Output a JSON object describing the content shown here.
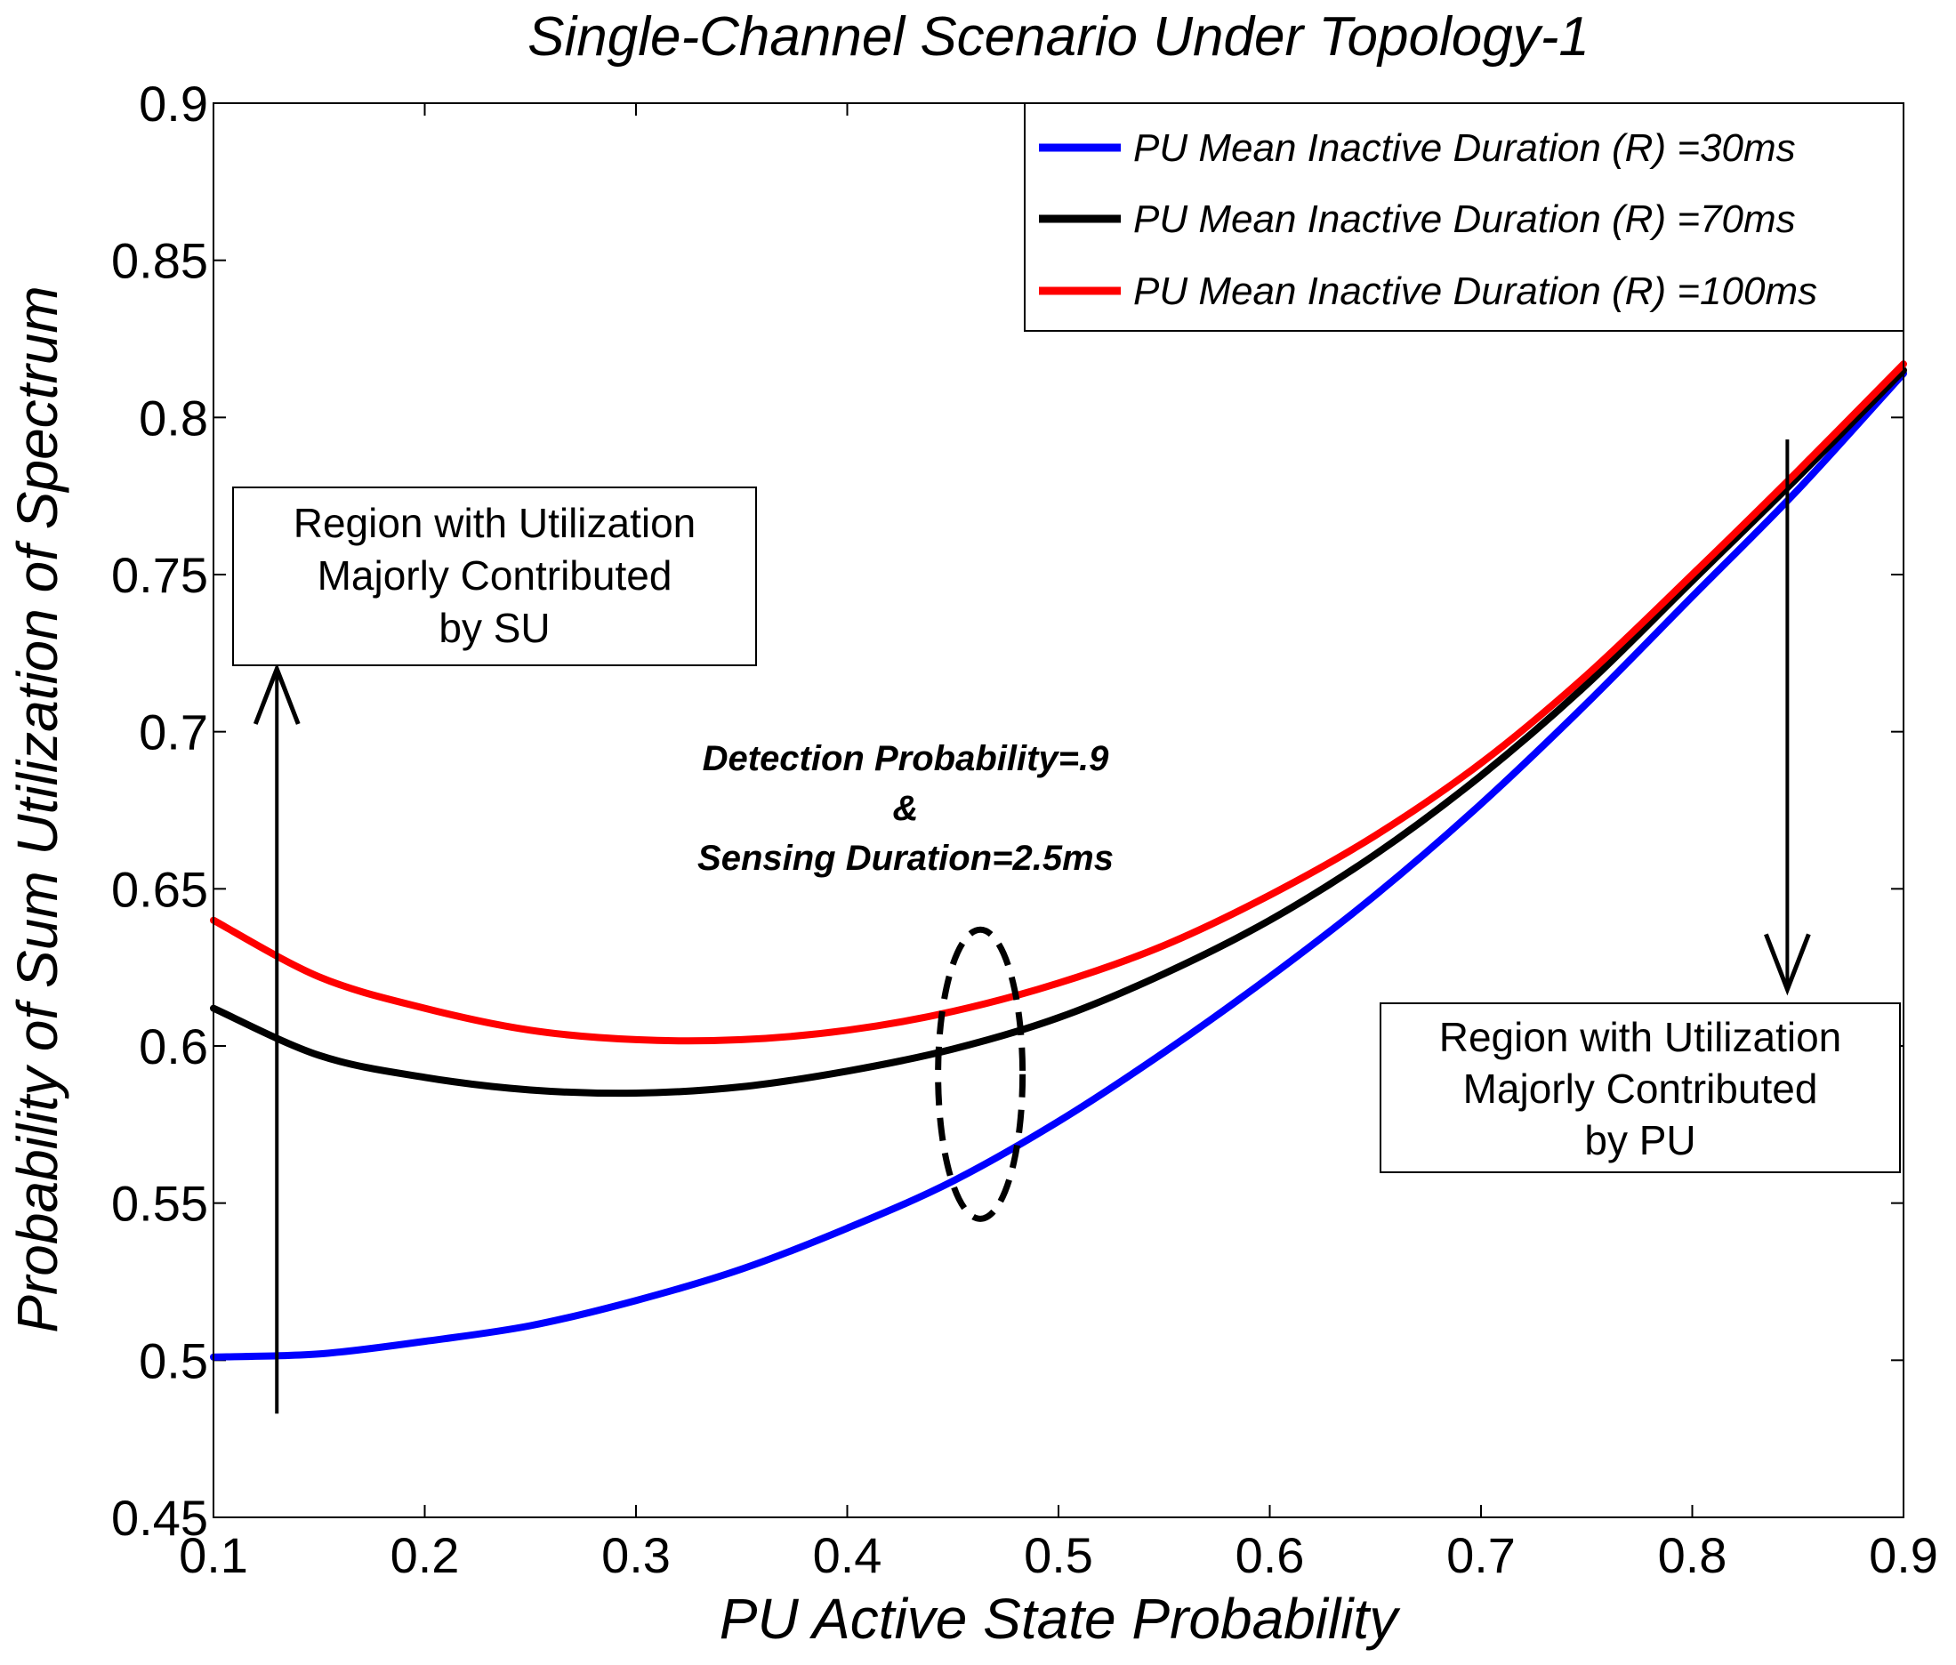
{
  "chart_data": {
    "type": "line",
    "title": "Single-Channel Scenario Under Topology-1",
    "xlabel": "PU Active State Probability",
    "ylabel": "Probability of Sum Utilization of Spectrum",
    "xlim": [
      0.1,
      0.9
    ],
    "ylim": [
      0.45,
      0.9
    ],
    "xticks": [
      0.1,
      0.2,
      0.3,
      0.4,
      0.5,
      0.6,
      0.7,
      0.8,
      0.9
    ],
    "yticks": [
      0.45,
      0.5,
      0.55,
      0.6,
      0.65,
      0.7,
      0.75,
      0.8,
      0.85,
      0.9
    ],
    "xtick_labels": [
      "0.1",
      "0.2",
      "0.3",
      "0.4",
      "0.5",
      "0.6",
      "0.7",
      "0.8",
      "0.9"
    ],
    "ytick_labels": [
      "0.45",
      "0.5",
      "0.55",
      "0.6",
      "0.65",
      "0.7",
      "0.75",
      "0.8",
      "0.85",
      "0.9"
    ],
    "grid": false,
    "legend_position": "top-right",
    "x": [
      0.1,
      0.15,
      0.2,
      0.25,
      0.3,
      0.35,
      0.4,
      0.45,
      0.5,
      0.55,
      0.6,
      0.65,
      0.7,
      0.75,
      0.8,
      0.85,
      0.9
    ],
    "series": [
      {
        "name": "PU Mean Inactive Duration (R) =30ms",
        "color": "#0000ff",
        "values": [
          0.501,
          0.502,
          0.506,
          0.511,
          0.519,
          0.529,
          0.542,
          0.557,
          0.576,
          0.598,
          0.622,
          0.648,
          0.677,
          0.709,
          0.743,
          0.777,
          0.814
        ]
      },
      {
        "name": "PU Mean Inactive Duration (R) =70ms",
        "color": "#000000",
        "values": [
          0.612,
          0.597,
          0.59,
          0.586,
          0.585,
          0.587,
          0.592,
          0.599,
          0.609,
          0.623,
          0.64,
          0.661,
          0.686,
          0.715,
          0.748,
          0.781,
          0.815
        ]
      },
      {
        "name": "PU Mean Inactive Duration (R) =100ms",
        "color": "#ff0000",
        "values": [
          0.64,
          0.622,
          0.612,
          0.605,
          0.602,
          0.602,
          0.605,
          0.611,
          0.62,
          0.632,
          0.648,
          0.667,
          0.69,
          0.718,
          0.75,
          0.783,
          0.817
        ]
      }
    ],
    "annotations": {
      "su_region": {
        "line1": "Region with Utilization",
        "line2": "Majorly Contributed",
        "line3": "by SU",
        "arrow_x": 0.13,
        "arrow_from_y": 0.483,
        "arrow_to_y": 0.72
      },
      "pu_region": {
        "line1": "Region with Utilization",
        "line2": "Majorly Contributed",
        "line3": "by PU",
        "arrow_x": 0.845,
        "arrow_from_y": 0.793,
        "arrow_to_y": 0.618
      },
      "params": {
        "line1": "Detection Probability=.9",
        "line2": "&",
        "line3": "Sensing Duration=2.5ms"
      },
      "ellipse": {
        "cx": 0.463,
        "cy": 0.591,
        "rx": 0.02,
        "ry": 0.046
      }
    }
  }
}
